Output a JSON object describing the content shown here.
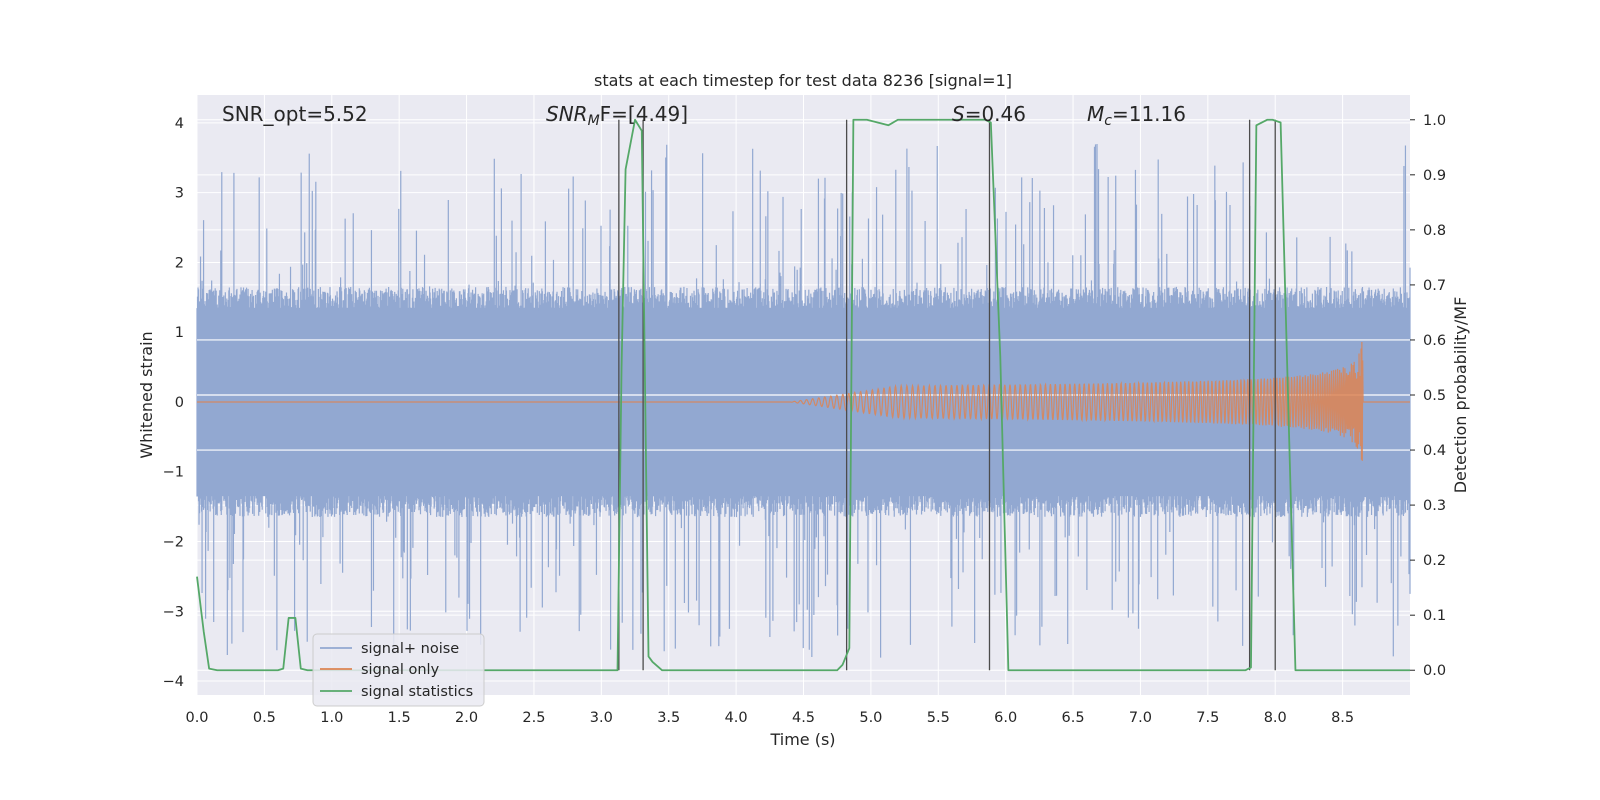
{
  "chart_data": {
    "type": "line",
    "title": "stats at each timestep for test data 8236 [signal=1]",
    "xlabel": "Time (s)",
    "ylabel_left": "Whitened strain",
    "ylabel_right": "Detection probability/MF",
    "xlim": [
      0.0,
      9.0
    ],
    "ylim_left": [
      -4.2,
      4.4
    ],
    "ylim_right": [
      -0.045,
      1.045
    ],
    "x_ticks": [
      "0.0",
      "0.5",
      "1.0",
      "1.5",
      "2.0",
      "2.5",
      "3.0",
      "3.5",
      "4.0",
      "4.5",
      "5.0",
      "5.5",
      "6.0",
      "6.5",
      "7.0",
      "7.5",
      "8.0",
      "8.5"
    ],
    "y_ticks_left": [
      "4",
      "3",
      "2",
      "1",
      "0",
      "−1",
      "−2",
      "−3",
      "−4"
    ],
    "y_ticks_right": [
      "1.0",
      "0.9",
      "0.8",
      "0.7",
      "0.6",
      "0.5",
      "0.4",
      "0.3",
      "0.2",
      "0.1",
      "0.0"
    ],
    "grid": true,
    "legend_position": "lower-left",
    "annotations": {
      "snr_opt": "SNR_opt=5.52",
      "snr_mf_main": "SNR",
      "snr_mf_sub": "M",
      "snr_mf_rest": "F=[4.49]",
      "s_main": "S",
      "s_rest": "=0.46",
      "mc_main": "M",
      "mc_sub": "c",
      "mc_rest": "=11.16"
    },
    "series": [
      {
        "name": "signal+ noise",
        "axis": "left",
        "color": "#92a8d1",
        "description": "whitened noisy strain, dense noise spanning roughly ±1.5 with peaks to about ±3.7",
        "envelope_abs": 1.5,
        "peak_abs": 3.7
      },
      {
        "name": "signal only",
        "axis": "left",
        "color": "#dd8452",
        "description": "chirp signal, flat at 0 until ~4.4 s, growing oscillation up to amplitude ~1.0 at merger ~8.65 s, then 0",
        "chirp_start": 4.4,
        "merger_time": 8.65,
        "peak_amplitude": 1.0
      },
      {
        "name": "signal statistics",
        "axis": "right",
        "color": "#55a868",
        "x": [
          0.0,
          0.05,
          0.09,
          0.15,
          0.6,
          0.64,
          0.68,
          0.73,
          0.77,
          0.82,
          3.12,
          3.15,
          3.18,
          3.25,
          3.3,
          3.35,
          3.38,
          3.45,
          4.75,
          4.79,
          4.84,
          4.87,
          4.97,
          5.05,
          5.13,
          5.2,
          5.85,
          5.89,
          5.96,
          6.02,
          7.78,
          7.82,
          7.86,
          7.94,
          7.98,
          8.04,
          8.15,
          9.0
        ],
        "y": [
          0.17,
          0.07,
          0.003,
          0.0,
          0.0,
          0.003,
          0.095,
          0.095,
          0.003,
          0.0,
          0.0,
          0.55,
          0.91,
          1.0,
          0.98,
          0.025,
          0.015,
          0.0,
          0.0,
          0.01,
          0.04,
          1.0,
          1.0,
          0.995,
          0.99,
          1.0,
          1.0,
          0.995,
          0.57,
          0.0,
          0.0,
          0.005,
          0.99,
          1.0,
          1.0,
          0.995,
          0.0,
          0.0
        ]
      }
    ],
    "vertical_markers_x": [
      3.13,
      3.31,
      4.82,
      5.88,
      7.81,
      8.0
    ],
    "legend": [
      "signal+ noise",
      "signal only",
      "signal statistics"
    ]
  }
}
